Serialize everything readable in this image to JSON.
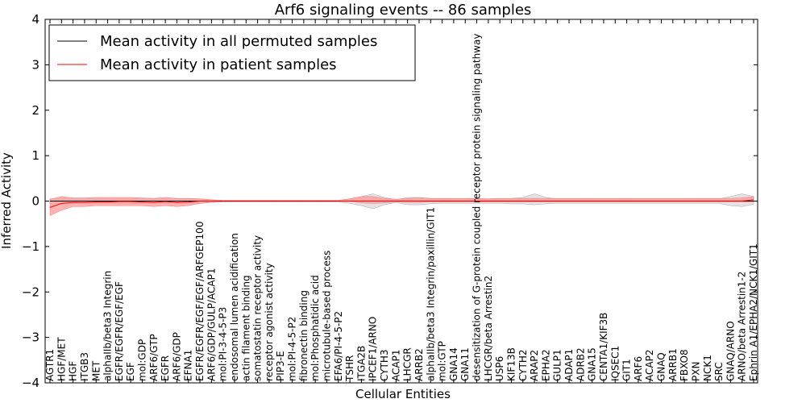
{
  "chart_data": {
    "type": "line",
    "title": "Arf6 signaling events -- 86 samples",
    "xlabel": "Cellular Entities",
    "ylabel": "Inferred Activity",
    "ylim": [
      -4,
      4
    ],
    "yticks": [
      -4,
      -3,
      -2,
      -1,
      0,
      1,
      2,
      3,
      4
    ],
    "ytick_labels": [
      "−4",
      "−3",
      "−2",
      "−1",
      "0",
      "1",
      "2",
      "3",
      "4"
    ],
    "grid": false,
    "legend_position": "top-left",
    "categories": [
      "AGTR1",
      "HGF/MET",
      "HGF",
      "ITGB3",
      "MET",
      "alphaIIb/beta3 Integrin",
      "EGFR/EGFR/EGF/EGF",
      "EGF",
      "mol:GDP",
      "ARF6/GTP",
      "EGFR",
      "ARF6/GDP",
      "EFNA1",
      "EGFR/EGFR/EGF/EGF/ARFGEP100",
      "ARF6/GDP/GULP/ACAP1",
      "mol:PI-3-4-5-P3",
      "endosomal lumen acidification",
      "actin filament binding",
      "somatostatin receptor activity",
      "receptor agonist activity",
      "PIP3-E",
      "mol:PI-4-5-P2",
      "fibronectin binding",
      "mol:Phosphatidic acid",
      "microtubule-based process",
      "EFA6/PI-4-5-P2",
      "TSHR",
      "ITGA2B",
      "IPCEF1/ARNO",
      "CYTH3",
      "ACAP1",
      "LHCGR",
      "ARRB2",
      "alphaIIb/beta3 Integrin/paxillin/GIT1",
      "mol:GTP",
      "GNA14",
      "GNA11",
      "desensitization of G-protein coupled receptor protein signaling pathway",
      "LHCGR/beta Arrestin2",
      "USP6",
      "KIF13B",
      "CYTH2",
      "ARAP2",
      "EPHA2",
      "GULP1",
      "ADAP1",
      "ADRB2",
      "GNA15",
      "CENTA1/KIF3B",
      "IQSEC1",
      "GIT1",
      "ARF6",
      "ACAP2",
      "GNAQ",
      "ARRB1",
      "FBXO8",
      "PXN",
      "NCK1",
      "SRC",
      "GNAQ/ARNO",
      "ARNO/beta Arrestin1-2",
      "Ephrin A1/EPHA2/NCK1/GIT1"
    ],
    "series": [
      {
        "name": "Mean activity in all permuted samples",
        "color": "#000000",
        "values": [
          0.0,
          0.0,
          0.0,
          0.0,
          0.0,
          0.0,
          0.0,
          0.0,
          0.0,
          0.0,
          0.0,
          0.0,
          0.0,
          0.0,
          0.0,
          0.0,
          0.0,
          0.0,
          0.0,
          0.0,
          0.0,
          0.0,
          0.0,
          0.0,
          0.0,
          0.0,
          0.0,
          0.0,
          0.0,
          0.0,
          0.0,
          0.0,
          0.0,
          0.0,
          0.0,
          0.0,
          0.0,
          0.0,
          0.0,
          0.0,
          0.0,
          0.0,
          0.0,
          0.0,
          0.0,
          0.0,
          0.0,
          0.0,
          0.0,
          0.0,
          0.0,
          0.0,
          0.0,
          0.0,
          0.0,
          0.0,
          0.0,
          0.0,
          0.0,
          0.0,
          0.0,
          0.0
        ],
        "band_lower": [
          -0.05,
          -0.05,
          -0.05,
          -0.05,
          -0.05,
          -0.05,
          -0.05,
          -0.05,
          -0.05,
          -0.05,
          -0.05,
          -0.05,
          -0.05,
          -0.05,
          -0.03,
          -0.02,
          -0.02,
          -0.02,
          -0.02,
          -0.02,
          -0.02,
          -0.02,
          -0.02,
          -0.02,
          -0.02,
          -0.02,
          -0.05,
          -0.1,
          -0.17,
          -0.08,
          -0.03,
          -0.08,
          -0.08,
          -0.06,
          -0.05,
          -0.05,
          -0.05,
          -0.05,
          -0.05,
          -0.05,
          -0.06,
          -0.06,
          -0.08,
          -0.06,
          -0.05,
          -0.05,
          -0.05,
          -0.05,
          -0.05,
          -0.05,
          -0.05,
          -0.05,
          -0.05,
          -0.05,
          -0.05,
          -0.05,
          -0.05,
          -0.05,
          -0.05,
          -0.1,
          -0.12,
          -0.07
        ],
        "band_upper": [
          0.05,
          0.05,
          0.05,
          0.05,
          0.05,
          0.05,
          0.05,
          0.05,
          0.05,
          0.05,
          0.05,
          0.05,
          0.05,
          0.05,
          0.03,
          0.02,
          0.02,
          0.02,
          0.02,
          0.02,
          0.02,
          0.02,
          0.02,
          0.02,
          0.02,
          0.02,
          0.05,
          0.1,
          0.16,
          0.08,
          0.03,
          0.08,
          0.08,
          0.06,
          0.05,
          0.05,
          0.05,
          0.05,
          0.05,
          0.05,
          0.06,
          0.08,
          0.16,
          0.08,
          0.05,
          0.05,
          0.05,
          0.05,
          0.05,
          0.05,
          0.05,
          0.05,
          0.05,
          0.05,
          0.05,
          0.05,
          0.05,
          0.05,
          0.05,
          0.1,
          0.16,
          0.1
        ]
      },
      {
        "name": "Mean activity in patient samples",
        "color": "#ff0000",
        "band_color": "#ff9999",
        "values": [
          -0.14,
          -0.05,
          -0.03,
          -0.03,
          -0.02,
          -0.02,
          -0.01,
          -0.01,
          -0.02,
          -0.03,
          -0.01,
          -0.03,
          -0.02,
          0.0,
          0.0,
          0.0,
          0.0,
          0.0,
          0.0,
          0.0,
          0.0,
          0.0,
          0.0,
          0.0,
          0.0,
          0.0,
          0.0,
          0.0,
          0.0,
          0.0,
          0.0,
          0.0,
          0.0,
          0.0,
          0.0,
          0.0,
          0.0,
          0.0,
          0.0,
          0.0,
          0.0,
          0.0,
          0.0,
          0.0,
          0.0,
          0.0,
          0.0,
          0.0,
          0.0,
          0.0,
          0.0,
          0.0,
          0.0,
          0.0,
          0.0,
          0.0,
          0.0,
          0.0,
          0.0,
          0.0,
          0.0,
          0.03
        ],
        "band_lower": [
          -0.32,
          -0.2,
          -0.12,
          -0.12,
          -0.1,
          -0.1,
          -0.1,
          -0.1,
          -0.1,
          -0.12,
          -0.1,
          -0.12,
          -0.1,
          -0.05,
          -0.03,
          -0.01,
          -0.01,
          -0.01,
          -0.01,
          -0.01,
          -0.01,
          -0.01,
          -0.01,
          -0.01,
          -0.01,
          -0.01,
          -0.01,
          -0.04,
          -0.05,
          -0.04,
          -0.02,
          -0.03,
          -0.03,
          -0.02,
          -0.02,
          -0.02,
          -0.02,
          -0.02,
          -0.02,
          -0.02,
          -0.02,
          -0.02,
          -0.02,
          -0.02,
          -0.02,
          -0.02,
          -0.02,
          -0.02,
          -0.02,
          -0.02,
          -0.02,
          -0.02,
          -0.02,
          -0.02,
          -0.02,
          -0.02,
          -0.02,
          -0.02,
          -0.02,
          -0.02,
          -0.02,
          -0.02
        ],
        "band_upper": [
          0.04,
          0.1,
          0.07,
          0.07,
          0.08,
          0.08,
          0.08,
          0.08,
          0.07,
          0.06,
          0.08,
          0.06,
          0.06,
          0.05,
          0.03,
          0.01,
          0.01,
          0.01,
          0.01,
          0.01,
          0.01,
          0.01,
          0.01,
          0.01,
          0.01,
          0.01,
          0.05,
          0.1,
          0.1,
          0.06,
          0.04,
          0.06,
          0.07,
          0.06,
          0.06,
          0.06,
          0.06,
          0.06,
          0.05,
          0.06,
          0.06,
          0.06,
          0.06,
          0.06,
          0.06,
          0.06,
          0.06,
          0.06,
          0.06,
          0.06,
          0.06,
          0.06,
          0.06,
          0.06,
          0.06,
          0.06,
          0.06,
          0.06,
          0.06,
          0.06,
          0.07,
          0.1
        ]
      }
    ]
  }
}
